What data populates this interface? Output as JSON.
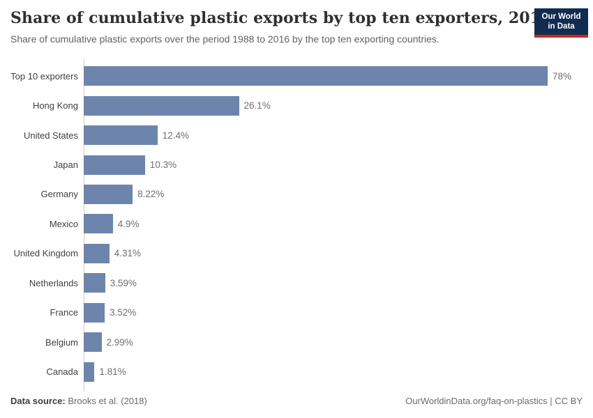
{
  "header": {
    "title": "Share of cumulative plastic exports by top ten exporters, 2016",
    "subtitle": "Share of cumulative plastic exports over the period 1988 to 2016 by the top ten exporting countries.",
    "logo": {
      "line1": "Our World",
      "line2": "in Data"
    }
  },
  "chart_data": {
    "type": "bar",
    "orientation": "horizontal",
    "categories": [
      "Top 10 exporters",
      "Hong Kong",
      "United States",
      "Japan",
      "Germany",
      "Mexico",
      "United Kingdom",
      "Netherlands",
      "France",
      "Belgium",
      "Canada"
    ],
    "values": [
      78,
      26.1,
      12.4,
      10.3,
      8.22,
      4.9,
      4.31,
      3.59,
      3.52,
      2.99,
      1.81
    ],
    "value_labels": [
      "78%",
      "26.1%",
      "12.4%",
      "10.3%",
      "8.22%",
      "4.9%",
      "4.31%",
      "3.59%",
      "3.52%",
      "2.99%",
      "1.81%"
    ],
    "title": "Share of cumulative plastic exports by top ten exporters, 2016",
    "xlabel": "",
    "ylabel": "",
    "xlim": [
      0,
      78
    ],
    "grid": false,
    "legend": "none",
    "bar_color": "#6d84ac"
  },
  "footer": {
    "source_label": "Data source:",
    "source_value": "Brooks et al. (2018)",
    "credit": "OurWorldinData.org/faq-on-plastics | CC BY"
  },
  "colors": {
    "bar": "#6d84ac",
    "logo_bg": "#102d50",
    "logo_accent": "#ce261f",
    "title": "#2f2f2f",
    "subtitle": "#616161",
    "axis": "#cccccc"
  }
}
